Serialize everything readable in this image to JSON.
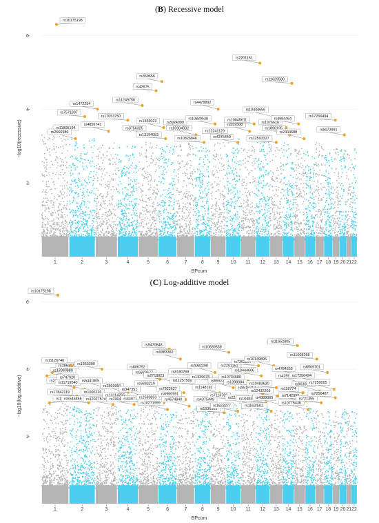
{
  "chart_data": [
    {
      "type": "scatter",
      "panel_letter": "B",
      "title_rest": " Recessive model",
      "xlabel": "BPcum",
      "ylabel": "−log10(recessive)",
      "ylim": [
        0,
        6.4
      ],
      "yticks": [
        2,
        4,
        6
      ],
      "chromosomes": [
        "1",
        "2",
        "3",
        "4",
        "5",
        "6",
        "7",
        "8",
        "9",
        "10",
        "11",
        "12",
        "13",
        "14",
        "15",
        "16",
        "17",
        "18",
        "19",
        "20",
        "21",
        "22"
      ],
      "background_top": [
        3.3,
        3.2,
        3.1,
        3.0,
        3.1,
        3.0,
        3.1,
        3.0,
        3.1,
        3.2,
        3.0,
        3.1,
        3.0,
        3.1,
        3.0,
        2.9,
        3.1,
        2.9,
        3.0,
        2.9,
        2.8,
        3.0
      ],
      "colors": {
        "odd": "#b4b4b4",
        "even": "#4ccfee",
        "highlight": "#f0a020"
      },
      "snps": [
        {
          "chr": 1,
          "pos": 0.55,
          "y": 6.3,
          "label": "rs10175198"
        },
        {
          "chr": 1,
          "pos": 0.3,
          "y": 3.35,
          "label": "rs11805194"
        },
        {
          "chr": 2,
          "pos": 0.25,
          "y": 3.2,
          "label": "rs2666986"
        },
        {
          "chr": 2,
          "pos": 0.6,
          "y": 3.8,
          "label": "rs7571897"
        },
        {
          "chr": 3,
          "pos": 0.1,
          "y": 4.0,
          "label": "rs1472254"
        },
        {
          "chr": 3,
          "pos": 0.6,
          "y": 3.4,
          "label": "rs4856741"
        },
        {
          "chr": 4,
          "pos": 0.5,
          "y": 3.7,
          "label": "rs17053750"
        },
        {
          "chr": 5,
          "pos": 0.2,
          "y": 4.1,
          "label": "rs11249756"
        },
        {
          "chr": 5,
          "pos": 0.6,
          "y": 3.3,
          "label": "rs3756325"
        },
        {
          "chr": 5,
          "pos": 0.9,
          "y": 4.5,
          "label": "rs42875"
        },
        {
          "chr": 6,
          "pos": 0.2,
          "y": 4.75,
          "label": "rs369656"
        },
        {
          "chr": 6,
          "pos": 0.3,
          "y": 3.5,
          "label": "rs1933023"
        },
        {
          "chr": 6,
          "pos": 0.4,
          "y": 3.2,
          "label": "rs13194053"
        },
        {
          "chr": 7,
          "pos": 0.8,
          "y": 3.5,
          "label": "rs3924999"
        },
        {
          "chr": 8,
          "pos": 0.1,
          "y": 3.3,
          "label": "rs16904932"
        },
        {
          "chr": 8,
          "pos": 0.6,
          "y": 3.1,
          "label": "rs10826846"
        },
        {
          "chr": 9,
          "pos": 0.3,
          "y": 3.6,
          "label": "rs10839538"
        },
        {
          "chr": 9,
          "pos": 0.5,
          "y": 4.0,
          "label": "rs4478892"
        },
        {
          "chr": 10,
          "pos": 0.4,
          "y": 3.3,
          "label": "rs12241129"
        },
        {
          "chr": 10,
          "pos": 0.8,
          "y": 3.1,
          "label": "rs4375449"
        },
        {
          "chr": 11,
          "pos": 0.6,
          "y": 3.4,
          "label": "rs559508"
        },
        {
          "chr": 11,
          "pos": 0.9,
          "y": 3.6,
          "label": "rs10845611"
        },
        {
          "chr": 12,
          "pos": 0.3,
          "y": 5.25,
          "label": "rs2201161"
        },
        {
          "chr": 13,
          "pos": 0.2,
          "y": 3.8,
          "label": "rs10444656"
        },
        {
          "chr": 13,
          "pos": 0.5,
          "y": 3.1,
          "label": "rs12593327"
        },
        {
          "chr": 14,
          "pos": 0.3,
          "y": 3.5,
          "label": "rs1976616"
        },
        {
          "chr": 14,
          "pos": 0.6,
          "y": 3.3,
          "label": "rs1896195"
        },
        {
          "chr": 14,
          "pos": 0.8,
          "y": 4.7,
          "label": "rs11629580"
        },
        {
          "chr": 15,
          "pos": 0.4,
          "y": 3.6,
          "label": "rs4984464"
        },
        {
          "chr": 15,
          "pos": 0.9,
          "y": 3.2,
          "label": "rs2404688"
        },
        {
          "chr": 19,
          "pos": 0.4,
          "y": 3.7,
          "label": "rs17256494"
        },
        {
          "chr": 20,
          "pos": 0.7,
          "y": 3.3,
          "label": "rs6073991"
        }
      ]
    },
    {
      "type": "scatter",
      "panel_letter": "C",
      "title_rest": " Log-additive model",
      "xlabel": "BPcum",
      "ylabel": "−log10(log.additive)",
      "ylim": [
        0,
        6.4
      ],
      "yticks": [
        2,
        4,
        6
      ],
      "chromosomes": [
        "1",
        "2",
        "3",
        "4",
        "5",
        "6",
        "7",
        "8",
        "9",
        "10",
        "11",
        "12",
        "13",
        "14",
        "15",
        "16",
        "17",
        "18",
        "19",
        "20",
        "21",
        "22"
      ],
      "background_top": [
        3.0,
        2.9,
        2.9,
        2.8,
        2.9,
        2.8,
        2.8,
        2.9,
        2.8,
        3.0,
        2.9,
        2.9,
        2.8,
        2.8,
        2.8,
        2.9,
        2.8,
        2.8,
        2.9,
        2.8,
        2.7,
        2.8
      ],
      "colors": {
        "odd": "#b4b4b4",
        "even": "#4ccfee",
        "highlight": "#f0a020"
      },
      "snps": [
        {
          "chr": 1,
          "pos": 0.6,
          "y": 6.2,
          "label": "rs10175198"
        },
        {
          "chr": 1,
          "pos": 0.2,
          "y": 3.8,
          "label": "rs12060889"
        },
        {
          "chr": 1,
          "pos": 0.4,
          "y": 3.9,
          "label": "rs1561573"
        },
        {
          "chr": 1,
          "pos": 0.3,
          "y": 3.0,
          "label": "rs10802523"
        },
        {
          "chr": 2,
          "pos": 0.1,
          "y": 4.1,
          "label": "rs11126740"
        },
        {
          "chr": 2,
          "pos": 0.2,
          "y": 3.45,
          "label": "rs2145419"
        },
        {
          "chr": 2,
          "pos": 0.3,
          "y": 3.2,
          "label": "rs17842119"
        },
        {
          "chr": 2,
          "pos": 0.5,
          "y": 3.6,
          "label": "rs747920"
        },
        {
          "chr": 2,
          "pos": 0.6,
          "y": 3.4,
          "label": "rs11719540"
        },
        {
          "chr": 2,
          "pos": 0.75,
          "y": 3.0,
          "label": "rs6546856"
        },
        {
          "chr": 3,
          "pos": 0.3,
          "y": 4.0,
          "label": "rs1863390"
        },
        {
          "chr": 3,
          "pos": 0.5,
          "y": 3.45,
          "label": "rs6441805"
        },
        {
          "chr": 3,
          "pos": 0.6,
          "y": 3.2,
          "label": "rs1000226"
        },
        {
          "chr": 3,
          "pos": 0.8,
          "y": 2.95,
          "label": "rs12027570"
        },
        {
          "chr": 4,
          "pos": 0.5,
          "y": 3.3,
          "label": "rs2869950"
        },
        {
          "chr": 4,
          "pos": 0.7,
          "y": 3.1,
          "label": "rs13114765"
        },
        {
          "chr": 4,
          "pos": 0.8,
          "y": 2.95,
          "label": "rs1904139"
        },
        {
          "chr": 5,
          "pos": 0.3,
          "y": 3.2,
          "label": "rs347351"
        },
        {
          "chr": 5,
          "pos": 0.5,
          "y": 3.0,
          "label": "rs4407724"
        },
        {
          "chr": 5,
          "pos": 0.7,
          "y": 3.9,
          "label": "rs806792"
        },
        {
          "chr": 6,
          "pos": 0.1,
          "y": 3.7,
          "label": "rs9379577"
        },
        {
          "chr": 6,
          "pos": 0.2,
          "y": 3.45,
          "label": "rs9382219"
        },
        {
          "chr": 6,
          "pos": 0.3,
          "y": 3.0,
          "label": "rs2583893"
        },
        {
          "chr": 6,
          "pos": 0.5,
          "y": 2.8,
          "label": "rs10271999"
        },
        {
          "chr": 6,
          "pos": 0.6,
          "y": 4.6,
          "label": "rs9470848"
        },
        {
          "chr": 6,
          "pos": 0.7,
          "y": 3.65,
          "label": "rs2718023"
        },
        {
          "chr": 7,
          "pos": 0.2,
          "y": 4.3,
          "label": "rs9383382"
        },
        {
          "chr": 7,
          "pos": 0.4,
          "y": 3.3,
          "label": "rs7822627"
        },
        {
          "chr": 7,
          "pos": 0.5,
          "y": 3.1,
          "label": "rs6960991"
        },
        {
          "chr": 7,
          "pos": 0.7,
          "y": 2.9,
          "label": "rs4574840"
        },
        {
          "chr": 8,
          "pos": 0.1,
          "y": 3.8,
          "label": "rs8180768"
        },
        {
          "chr": 8,
          "pos": 0.3,
          "y": 3.5,
          "label": "rs11257506"
        },
        {
          "chr": 9,
          "pos": 0.3,
          "y": 3.9,
          "label": "rs4082298"
        },
        {
          "chr": 9,
          "pos": 0.4,
          "y": 3.65,
          "label": "rs1339678"
        },
        {
          "chr": 9,
          "pos": 0.6,
          "y": 3.3,
          "label": "rs1148191"
        },
        {
          "chr": 9,
          "pos": 0.7,
          "y": 2.9,
          "label": "rs4375449"
        },
        {
          "chr": 9,
          "pos": 0.9,
          "y": 2.7,
          "label": "rs1536389"
        },
        {
          "chr": 10,
          "pos": 0.2,
          "y": 4.5,
          "label": "rs10839538"
        },
        {
          "chr": 10,
          "pos": 0.5,
          "y": 3.45,
          "label": "rs659228"
        },
        {
          "chr": 10,
          "pos": 0.6,
          "y": 3.1,
          "label": "rs7116789"
        },
        {
          "chr": 10,
          "pos": 0.8,
          "y": 2.75,
          "label": "rs1623277"
        },
        {
          "chr": 11,
          "pos": 0.3,
          "y": 3.9,
          "label": "rs2201161"
        },
        {
          "chr": 11,
          "pos": 0.5,
          "y": 3.65,
          "label": "rs10734680"
        },
        {
          "chr": 11,
          "pos": 0.7,
          "y": 3.45,
          "label": "rs1398084"
        },
        {
          "chr": 11,
          "pos": 0.8,
          "y": 2.95,
          "label": "rs2216228"
        },
        {
          "chr": 12,
          "pos": 0.2,
          "y": 4.1,
          "label": "rs7303397"
        },
        {
          "chr": 12,
          "pos": 0.4,
          "y": 3.8,
          "label": "rs10444606"
        },
        {
          "chr": 12,
          "pos": 0.5,
          "y": 3.25,
          "label": "rs9516212"
        },
        {
          "chr": 12,
          "pos": 0.7,
          "y": 3.0,
          "label": "rs10483637"
        },
        {
          "chr": 13,
          "pos": 0.1,
          "y": 2.75,
          "label": "rs11624311"
        },
        {
          "chr": 13,
          "pos": 0.3,
          "y": 4.1,
          "label": "rs10149896"
        },
        {
          "chr": 13,
          "pos": 0.5,
          "y": 3.45,
          "label": "rs10483630"
        },
        {
          "chr": 13,
          "pos": 0.6,
          "y": 3.2,
          "label": "rs12432203"
        },
        {
          "chr": 13,
          "pos": 0.8,
          "y": 2.95,
          "label": "rs4389065"
        },
        {
          "chr": 15,
          "pos": 0.3,
          "y": 4.7,
          "label": "rs11652805"
        },
        {
          "chr": 15,
          "pos": 0.5,
          "y": 3.85,
          "label": "rs4784335"
        },
        {
          "chr": 15,
          "pos": 0.6,
          "y": 3.6,
          "label": "rs425664"
        },
        {
          "chr": 15,
          "pos": 0.8,
          "y": 3.3,
          "label": "rs118774"
        },
        {
          "chr": 16,
          "pos": 0.1,
          "y": 3.05,
          "label": "rs7142992"
        },
        {
          "chr": 16,
          "pos": 0.3,
          "y": 2.8,
          "label": "rs10775436"
        },
        {
          "chr": 17,
          "pos": 0.2,
          "y": 4.3,
          "label": "rs11668258"
        },
        {
          "chr": 17,
          "pos": 0.4,
          "y": 3.65,
          "label": "rs17256494"
        },
        {
          "chr": 17,
          "pos": 0.5,
          "y": 3.35,
          "label": "rs9630856"
        },
        {
          "chr": 17,
          "pos": 0.7,
          "y": 3.0,
          "label": "rs721355"
        },
        {
          "chr": 18,
          "pos": 0.4,
          "y": 3.9,
          "label": "rs6509701"
        },
        {
          "chr": 19,
          "pos": 0.2,
          "y": 3.4,
          "label": "rs7250095"
        },
        {
          "chr": 19,
          "pos": 0.4,
          "y": 3.15,
          "label": "rs7256487"
        }
      ]
    }
  ]
}
